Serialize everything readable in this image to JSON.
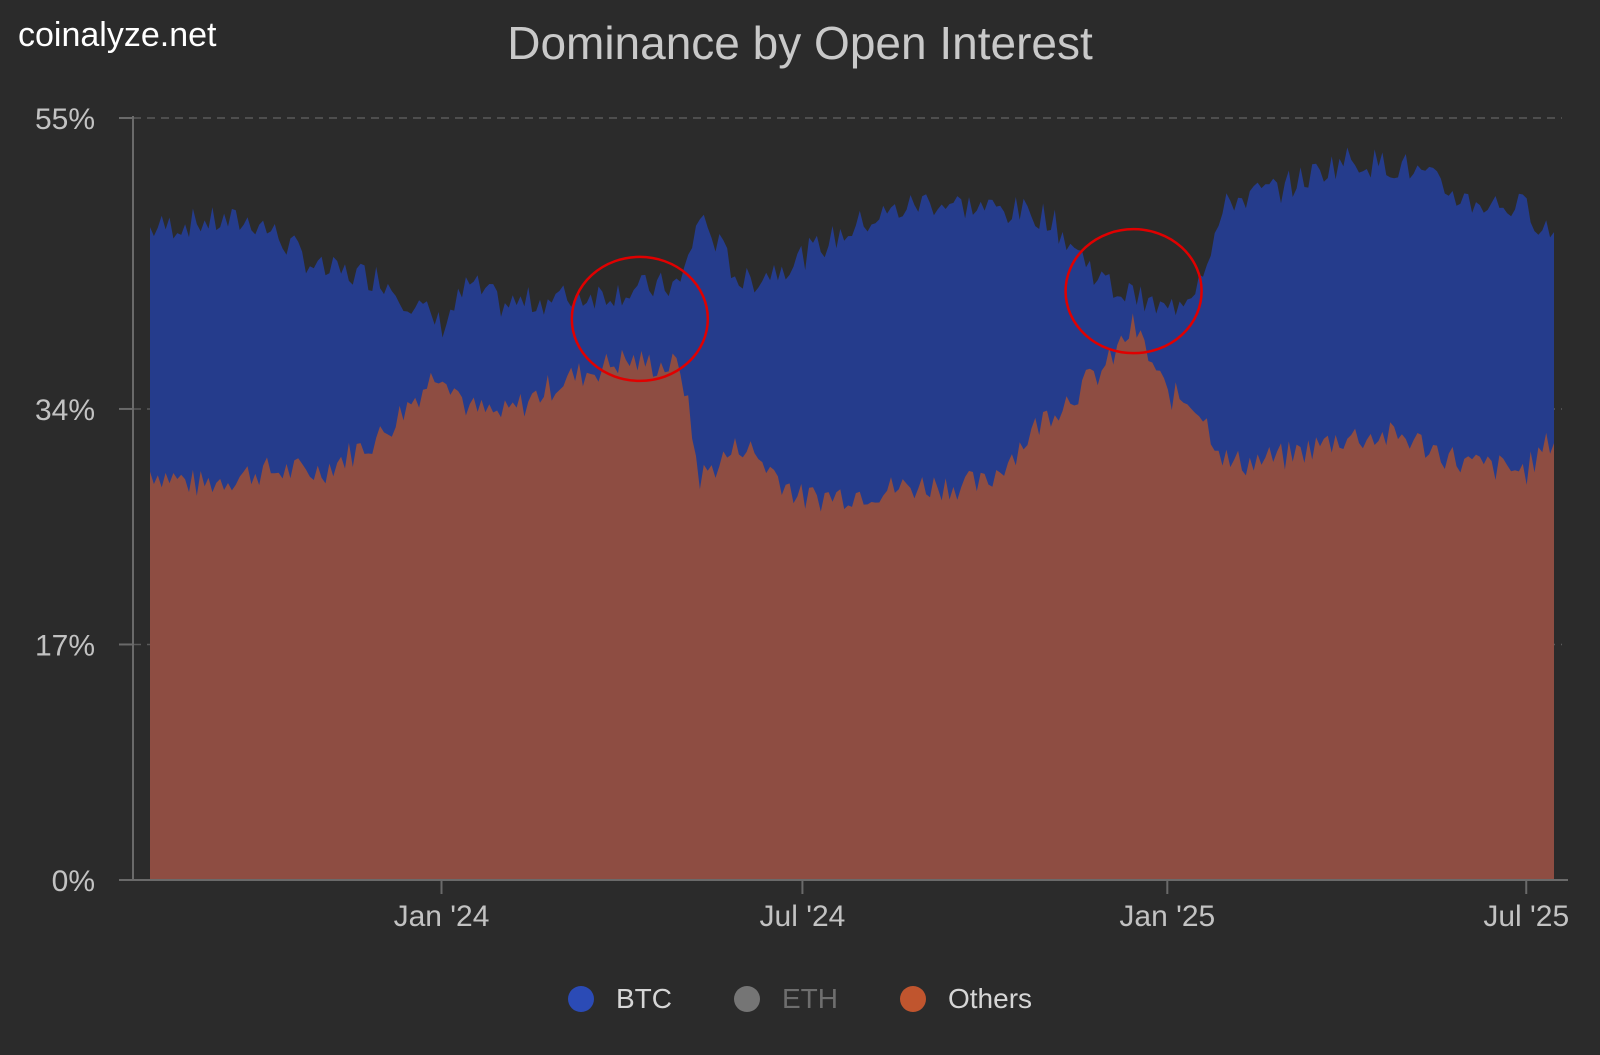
{
  "brand": "coinalyze.net",
  "chart_data": {
    "type": "area",
    "title": "Dominance by Open Interest",
    "stacked": true,
    "y_ticks": [
      "0%",
      "17%",
      "34%",
      "55%"
    ],
    "y_tick_values": [
      0,
      17,
      34,
      55
    ],
    "ylim": [
      0,
      55
    ],
    "x_ticks": [
      "Jan '24",
      "Jul '24",
      "Jan '25",
      "Jul '25"
    ],
    "x_tick_dates": [
      "2024-01-01",
      "2024-07-01",
      "2025-01-01",
      "2025-07-01"
    ],
    "x_range": [
      "2023-08-07",
      "2025-07-15"
    ],
    "grid": "dashed horizontal at y ticks",
    "legend_position": "bottom",
    "series": [
      {
        "name": "BTC",
        "color": "#2b4bb6",
        "visible": true
      },
      {
        "name": "ETH",
        "color": "#757575",
        "visible": false
      },
      {
        "name": "Others",
        "color": "#c0552e",
        "visible": true
      }
    ],
    "x": [
      "2023-08-07",
      "2023-09-01",
      "2023-10-01",
      "2023-11-01",
      "2023-12-01",
      "2024-01-01",
      "2024-01-15",
      "2024-02-01",
      "2024-03-01",
      "2024-04-01",
      "2024-05-01",
      "2024-05-10",
      "2024-06-01",
      "2024-07-01",
      "2024-08-01",
      "2024-09-01",
      "2024-10-01",
      "2024-11-01",
      "2024-12-01",
      "2024-12-15",
      "2025-01-01",
      "2025-01-15",
      "2025-02-01",
      "2025-03-01",
      "2025-04-01",
      "2025-05-01",
      "2025-06-01",
      "2025-07-01",
      "2025-07-15"
    ],
    "others_pct": [
      29.5,
      28.5,
      29.5,
      29.5,
      32,
      37,
      34,
      33.5,
      36,
      37.5,
      37,
      29,
      31.5,
      27.5,
      28,
      28.5,
      28.5,
      33.5,
      37,
      40,
      35,
      34.5,
      30,
      30.5,
      32,
      32,
      30,
      29.5,
      32
    ],
    "stack_top_pct": [
      47,
      47.5,
      47.5,
      44,
      43.5,
      40,
      43,
      41.5,
      42,
      42.5,
      43,
      48,
      43,
      45,
      47.5,
      49,
      48.5,
      48,
      43,
      42,
      41,
      43,
      49,
      50,
      52,
      51.5,
      49,
      48.5,
      46.5
    ],
    "annotations": [
      {
        "type": "circle",
        "color": "#e00000",
        "center_date": "2024-04-10",
        "center_value": 40.5
      },
      {
        "type": "circle",
        "color": "#e00000",
        "center_date": "2024-12-15",
        "center_value": 42.5
      }
    ]
  }
}
